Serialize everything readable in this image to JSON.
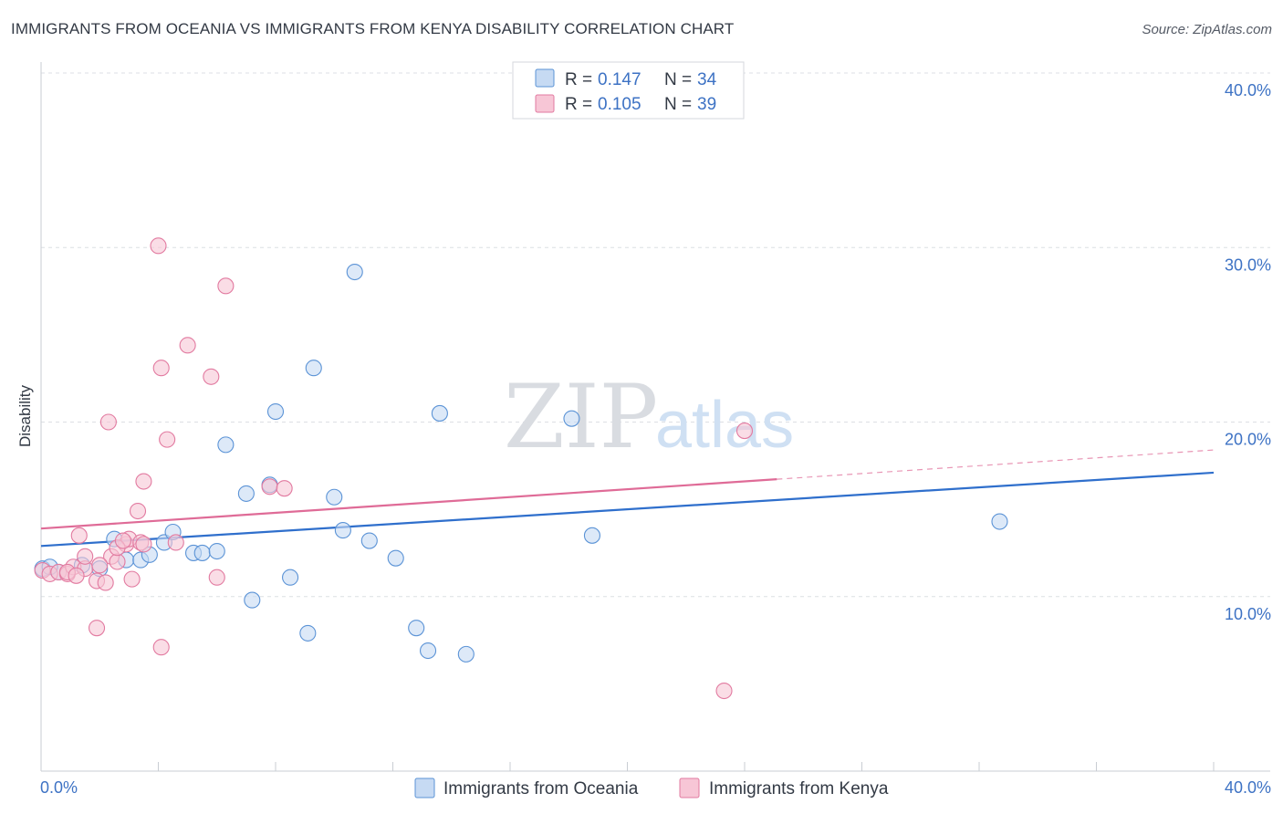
{
  "header": {
    "title": "IMMIGRANTS FROM OCEANIA VS IMMIGRANTS FROM KENYA DISABILITY CORRELATION CHART",
    "source": "Source: ZipAtlas.com"
  },
  "watermark": {
    "zip": "ZIP",
    "atlas": "atlas"
  },
  "chart_data": {
    "type": "scatter",
    "title": "IMMIGRANTS FROM OCEANIA VS IMMIGRANTS FROM KENYA DISABILITY CORRELATION CHART",
    "xlabel": "",
    "ylabel": "Disability",
    "xlim": [
      0,
      40
    ],
    "ylim": [
      0,
      40
    ],
    "x_tick_labels": {
      "min": "0.0%",
      "max": "40.0%"
    },
    "y_ticks": [
      {
        "value": 10,
        "label": "10.0%"
      },
      {
        "value": 20,
        "label": "20.0%"
      },
      {
        "value": 30,
        "label": "30.0%"
      },
      {
        "value": 40,
        "label": "40.0%"
      }
    ],
    "grid": true,
    "legend": {
      "placement": "top-center",
      "entries": [
        {
          "r_label": "R = ",
          "r_value": "0.147",
          "n_label": "N = ",
          "n_value": "34"
        },
        {
          "r_label": "R = ",
          "r_value": "0.105",
          "n_label": "N = ",
          "n_value": "39"
        }
      ]
    },
    "series": [
      {
        "name": "Immigrants from Oceania",
        "color": "#5b93d6",
        "fill": "#c6daf3",
        "line_color": "#2f6fcc",
        "trend": {
          "x0": 0,
          "y0": 12.9,
          "x1": 40,
          "y1": 17.1,
          "solid_until": 40
        },
        "points": [
          [
            0.05,
            11.6
          ],
          [
            0.6,
            11.4
          ],
          [
            1.4,
            11.8
          ],
          [
            2.0,
            11.6
          ],
          [
            2.5,
            13.3
          ],
          [
            2.9,
            12.1
          ],
          [
            3.4,
            12.1
          ],
          [
            3.7,
            12.4
          ],
          [
            4.2,
            13.1
          ],
          [
            4.5,
            13.7
          ],
          [
            5.2,
            12.5
          ],
          [
            5.5,
            12.5
          ],
          [
            6.0,
            12.6
          ],
          [
            6.3,
            18.7
          ],
          [
            7.0,
            15.9
          ],
          [
            7.2,
            9.8
          ],
          [
            7.8,
            16.4
          ],
          [
            8.0,
            20.6
          ],
          [
            8.5,
            11.1
          ],
          [
            9.1,
            7.9
          ],
          [
            9.3,
            23.1
          ],
          [
            10.0,
            15.7
          ],
          [
            10.3,
            13.8
          ],
          [
            10.7,
            28.6
          ],
          [
            11.2,
            13.2
          ],
          [
            12.1,
            12.2
          ],
          [
            12.8,
            8.2
          ],
          [
            13.2,
            6.9
          ],
          [
            13.6,
            20.5
          ],
          [
            14.5,
            6.7
          ],
          [
            18.1,
            20.2
          ],
          [
            18.8,
            13.5
          ],
          [
            32.7,
            14.3
          ],
          [
            0.3,
            11.7
          ]
        ]
      },
      {
        "name": "Immigrants from Kenya",
        "color": "#e27aa0",
        "fill": "#f7c6d6",
        "line_color": "#df6b97",
        "trend": {
          "x0": 0,
          "y0": 13.9,
          "x1": 40,
          "y1": 18.4,
          "solid_until": 25.1
        },
        "points": [
          [
            0.05,
            11.5
          ],
          [
            0.3,
            11.3
          ],
          [
            0.6,
            11.4
          ],
          [
            0.9,
            11.3
          ],
          [
            1.1,
            11.7
          ],
          [
            1.3,
            13.5
          ],
          [
            1.5,
            11.6
          ],
          [
            1.9,
            10.9
          ],
          [
            1.5,
            12.3
          ],
          [
            2.2,
            10.8
          ],
          [
            2.4,
            12.3
          ],
          [
            2.6,
            12.0
          ],
          [
            2.0,
            11.8
          ],
          [
            2.9,
            13.0
          ],
          [
            3.0,
            13.3
          ],
          [
            3.3,
            14.9
          ],
          [
            3.5,
            16.6
          ],
          [
            2.3,
            20.0
          ],
          [
            3.1,
            11.0
          ],
          [
            2.6,
            12.8
          ],
          [
            3.4,
            13.1
          ],
          [
            3.5,
            13.0
          ],
          [
            4.1,
            23.1
          ],
          [
            4.3,
            19.0
          ],
          [
            4.6,
            13.1
          ],
          [
            4.0,
            30.1
          ],
          [
            5.0,
            24.4
          ],
          [
            5.8,
            22.6
          ],
          [
            6.0,
            11.1
          ],
          [
            6.3,
            27.8
          ],
          [
            7.8,
            16.3
          ],
          [
            8.3,
            16.2
          ],
          [
            1.9,
            8.2
          ],
          [
            4.1,
            7.1
          ],
          [
            24.0,
            19.5
          ],
          [
            23.3,
            4.6
          ],
          [
            0.9,
            11.4
          ],
          [
            1.2,
            11.2
          ],
          [
            2.8,
            13.2
          ]
        ]
      }
    ]
  }
}
